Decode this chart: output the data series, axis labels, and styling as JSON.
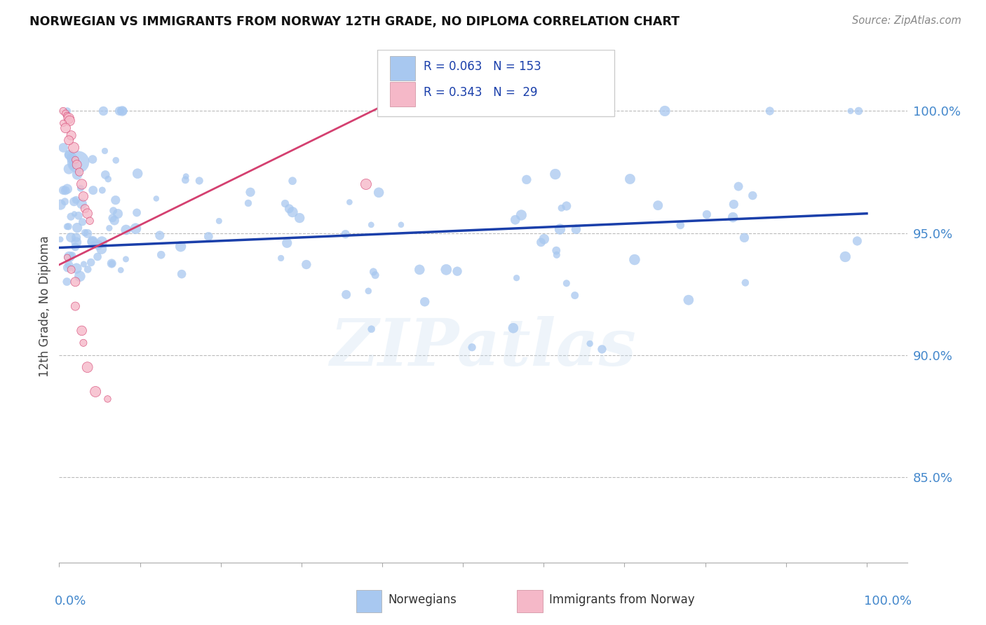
{
  "title": "NORWEGIAN VS IMMIGRANTS FROM NORWAY 12TH GRADE, NO DIPLOMA CORRELATION CHART",
  "source": "Source: ZipAtlas.com",
  "ylabel": "12th Grade, No Diploma",
  "watermark": "ZIPatlas",
  "legend_blue_label": "Norwegians",
  "legend_pink_label": "Immigrants from Norway",
  "blue_R": 0.063,
  "blue_N": 153,
  "pink_R": 0.343,
  "pink_N": 29,
  "blue_color": "#a8c8f0",
  "blue_line_color": "#1a3faa",
  "pink_color": "#f5b8c8",
  "pink_line_color": "#d44070",
  "background_color": "#ffffff",
  "grid_color": "#bbbbbb",
  "title_color": "#111111",
  "axis_label_color": "#4488cc",
  "source_color": "#888888"
}
